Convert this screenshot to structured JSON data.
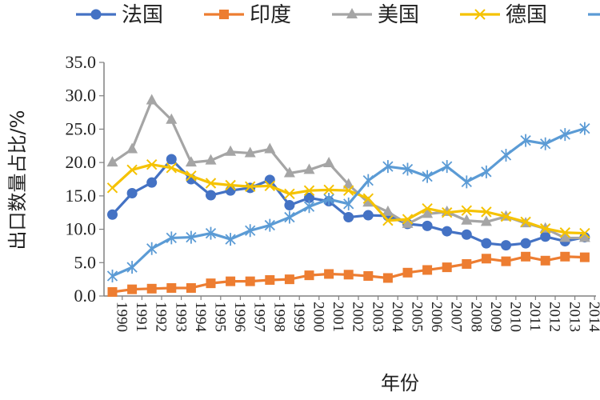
{
  "chart_data": {
    "type": "line",
    "title": "",
    "xlabel": "年份",
    "ylabel": "出口数量占比/%",
    "ylim": [
      0,
      35
    ],
    "y_ticks": [
      "0.0",
      "5.0",
      "10.0",
      "15.0",
      "20.0",
      "25.0",
      "30.0",
      "35.0"
    ],
    "categories": [
      "1990",
      "1991",
      "1992",
      "1993",
      "1994",
      "1995",
      "1996",
      "1997",
      "1998",
      "1999",
      "2000",
      "2001",
      "2002",
      "2003",
      "2004",
      "2005",
      "2006",
      "2007",
      "2008",
      "2009",
      "2010",
      "2011",
      "2012",
      "2013",
      "2014"
    ],
    "legend_position": "top",
    "grid": false,
    "series": [
      {
        "name": "法国",
        "color": "#4472C4",
        "marker": "circle",
        "values": [
          12.2,
          15.4,
          17.0,
          20.5,
          17.5,
          15.1,
          15.8,
          16.2,
          17.4,
          13.6,
          14.7,
          14.2,
          11.8,
          12.1,
          12.0,
          10.8,
          10.5,
          9.7,
          9.2,
          7.9,
          7.6,
          7.9,
          8.9,
          8.2,
          8.8
        ]
      },
      {
        "name": "印度",
        "color": "#ED7D31",
        "marker": "square",
        "values": [
          0.6,
          1.0,
          1.1,
          1.2,
          1.2,
          1.9,
          2.2,
          2.2,
          2.4,
          2.5,
          3.1,
          3.3,
          3.2,
          3.0,
          2.7,
          3.5,
          3.9,
          4.3,
          4.8,
          5.6,
          5.2,
          5.9,
          5.3,
          5.9,
          5.8
        ]
      },
      {
        "name": "美国",
        "color": "#A5A5A5",
        "marker": "triangle",
        "values": [
          20.0,
          22.0,
          29.3,
          26.4,
          20.0,
          20.3,
          21.6,
          21.4,
          22.0,
          18.4,
          18.9,
          19.9,
          16.7,
          14.0,
          12.6,
          10.8,
          12.3,
          12.6,
          11.3,
          11.1,
          11.9,
          10.9,
          10.1,
          8.7,
          8.7
        ]
      },
      {
        "name": "德国",
        "color": "#F5C200",
        "marker": "x",
        "values": [
          16.2,
          18.9,
          19.7,
          19.2,
          18.0,
          16.9,
          16.6,
          16.4,
          16.5,
          15.3,
          15.8,
          15.9,
          15.8,
          14.6,
          11.3,
          11.5,
          13.1,
          12.5,
          12.8,
          12.6,
          11.9,
          11.1,
          10.1,
          9.5,
          9.4
        ]
      },
      {
        "name": "",
        "color": "#5B9BD5",
        "marker": "star",
        "values": [
          3.0,
          4.3,
          7.1,
          8.7,
          8.8,
          9.4,
          8.5,
          9.8,
          10.6,
          11.8,
          13.4,
          14.5,
          13.8,
          17.3,
          19.4,
          19.0,
          17.9,
          19.4,
          17.1,
          18.6,
          21.1,
          23.3,
          22.8,
          24.2,
          25.1
        ]
      }
    ]
  }
}
